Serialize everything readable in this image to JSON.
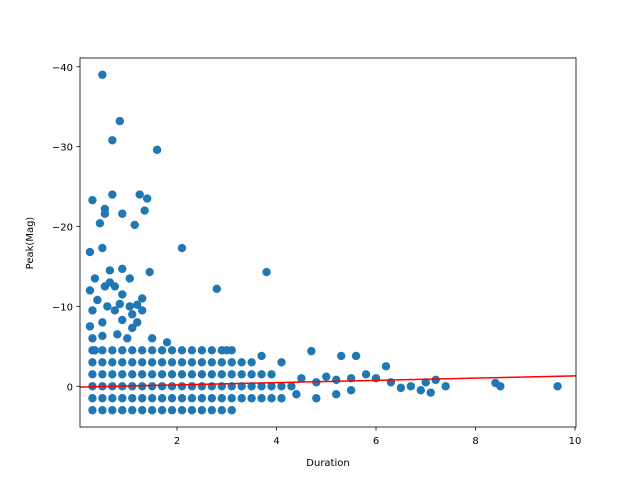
{
  "chart_data": {
    "type": "scatter",
    "xlabel": "Duration",
    "ylabel": "Peak(Mag)",
    "xlim": [
      0.05,
      10.02
    ],
    "ylim": [
      -41.1,
      5.1
    ],
    "invert_y": true,
    "xticks": [
      2,
      4,
      6,
      8,
      10
    ],
    "yticks": [
      {
        "value": -40,
        "label": "−40"
      },
      {
        "value": -30,
        "label": "−30"
      },
      {
        "value": -20,
        "label": "−20"
      },
      {
        "value": -10,
        "label": "−10"
      },
      0
    ],
    "series": [
      {
        "type": "scatter",
        "color": "#1f77b4",
        "x": [
          0.3,
          0.5,
          0.7,
          0.9,
          1.1,
          1.3,
          1.5,
          1.7,
          1.9,
          2.1,
          2.3,
          2.5,
          2.7,
          2.9,
          3.1,
          0.3,
          0.5,
          0.7,
          0.9,
          1.1,
          1.3,
          1.5,
          1.7,
          1.9,
          2.1,
          2.3,
          2.5,
          2.7,
          2.9,
          3.1,
          3.3,
          3.5,
          0.3,
          0.5,
          0.7,
          0.9,
          1.1,
          1.3,
          1.5,
          1.7,
          1.9,
          2.1,
          2.3,
          2.5,
          2.7,
          2.9,
          3.1,
          3.3,
          3.5,
          3.7,
          3.9,
          0.3,
          0.5,
          0.7,
          0.9,
          1.1,
          1.3,
          1.5,
          1.7,
          1.9,
          2.1,
          2.3,
          2.5,
          2.7,
          2.9,
          3.1,
          3.3,
          3.5,
          3.7,
          3.9,
          4.1,
          4.3,
          0.3,
          0.5,
          0.7,
          0.9,
          1.1,
          1.3,
          1.5,
          1.7,
          1.9,
          2.1,
          2.3,
          2.5,
          2.7,
          2.9,
          3.1,
          3.3,
          3.5,
          3.7,
          3.9,
          4.1,
          0.3,
          0.5,
          0.7,
          0.9,
          1.1,
          1.3,
          1.5,
          1.7,
          1.9,
          2.1,
          2.3,
          2.5,
          2.7,
          2.9,
          3.1,
          4.5,
          4.7,
          4.8,
          5.0,
          5.2,
          5.3,
          5.5,
          5.6,
          5.8,
          6.0,
          6.2,
          6.3,
          6.5,
          6.7,
          6.9,
          7.0,
          7.1,
          7.2,
          7.4,
          8.4,
          8.5,
          9.65,
          4.4,
          4.8,
          5.2,
          5.5,
          0.5,
          0.85,
          0.7,
          1.6,
          0.3,
          0.55,
          0.55,
          0.7,
          0.9,
          1.25,
          1.4,
          1.35,
          1.15,
          0.45,
          0.5,
          0.25,
          2.1,
          0.9,
          0.65,
          1.45,
          0.35,
          1.05,
          3.8,
          0.65,
          0.25,
          0.55,
          0.75,
          2.8,
          0.9,
          0.4,
          1.3,
          0.85,
          0.6,
          1.05,
          1.2,
          0.3,
          0.75,
          1.1,
          0.9,
          1.3,
          1.2,
          1.1,
          0.25,
          0.5,
          0.3,
          0.5,
          0.8,
          1.0,
          1.5,
          1.8,
          3.0,
          3.7,
          4.1,
          0.35
        ],
        "values": [
          -4.5,
          -4.5,
          -4.5,
          -4.5,
          -4.5,
          -4.5,
          -4.5,
          -4.5,
          -4.5,
          -4.5,
          -4.5,
          -4.5,
          -4.5,
          -4.5,
          -4.5,
          -3,
          -3,
          -3,
          -3,
          -3,
          -3,
          -3,
          -3,
          -3,
          -3,
          -3,
          -3,
          -3,
          -3,
          -3,
          -3,
          -3,
          -1.5,
          -1.5,
          -1.5,
          -1.5,
          -1.5,
          -1.5,
          -1.5,
          -1.5,
          -1.5,
          -1.5,
          -1.5,
          -1.5,
          -1.5,
          -1.5,
          -1.5,
          -1.5,
          -1.5,
          -1.5,
          -1.5,
          0,
          0,
          0,
          0,
          0,
          0,
          0,
          0,
          0,
          0,
          0,
          0,
          0,
          0,
          0,
          0,
          0,
          0,
          0,
          0,
          0,
          1.5,
          1.5,
          1.5,
          1.5,
          1.5,
          1.5,
          1.5,
          1.5,
          1.5,
          1.5,
          1.5,
          1.5,
          1.5,
          1.5,
          1.5,
          1.5,
          1.5,
          1.5,
          1.5,
          1.5,
          3,
          3,
          3,
          3,
          3,
          3,
          3,
          3,
          3,
          3,
          3,
          3,
          3,
          3,
          3,
          -1,
          -4.4,
          -0.5,
          -1.2,
          -0.8,
          -3.8,
          -1,
          -3.8,
          -1.5,
          -1,
          -2.5,
          -0.5,
          0.2,
          0,
          0.5,
          -0.5,
          0.8,
          -0.8,
          0,
          -0.4,
          0,
          0,
          1,
          1.5,
          1,
          0.5,
          -39,
          -33.2,
          -30.8,
          -29.6,
          -23.3,
          -22.2,
          -21.6,
          -24,
          -21.6,
          -24,
          -23.5,
          -22,
          -20.2,
          -20.4,
          -17.3,
          -16.8,
          -17.3,
          -14.7,
          -14.5,
          -14.3,
          -13.5,
          -13.5,
          -14.3,
          -13,
          -12,
          -12.5,
          -12.5,
          -12.2,
          -11.5,
          -10.8,
          -11,
          -10.3,
          -10,
          -10,
          -10.2,
          -9.5,
          -9.5,
          -9,
          -8.3,
          -9.5,
          -8,
          -7.3,
          -7.5,
          -8,
          -6,
          -6.3,
          -6.5,
          -6,
          -6,
          -5.5,
          -4.5,
          -3.8,
          -3,
          -4.5
        ]
      },
      {
        "type": "line",
        "color": "#ff0000",
        "x": [
          0.05,
          10.02
        ],
        "values": [
          0.1,
          -1.3
        ]
      }
    ]
  }
}
